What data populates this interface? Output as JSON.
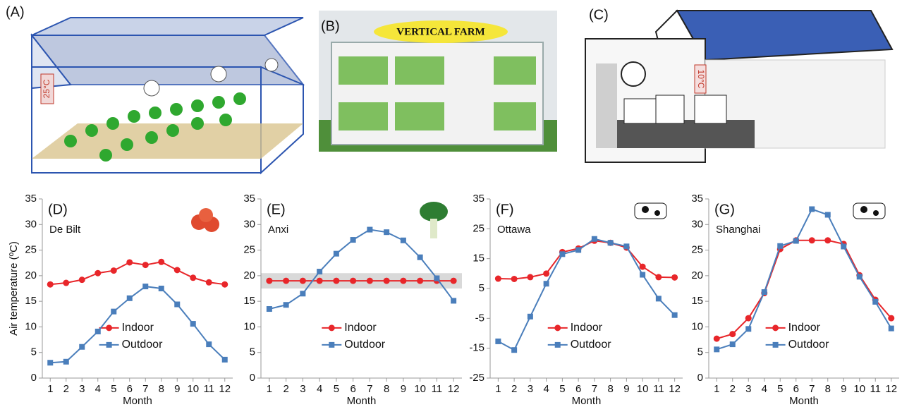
{
  "illustrations": [
    {
      "label": "(A)",
      "text": "25°C"
    },
    {
      "label": "(B)",
      "text": "VERTICAL FARM"
    },
    {
      "label": "(C)",
      "text": "10°C"
    }
  ],
  "chart_data": [
    {
      "type": "line",
      "title": "(D)",
      "subtitle": "De Bilt",
      "ylabel": "Air temperature (ºC)",
      "xlabel": "Month",
      "x": [
        1,
        2,
        3,
        4,
        5,
        6,
        7,
        8,
        9,
        10,
        11,
        12
      ],
      "xlim": [
        0.5,
        12.5
      ],
      "xticks": [
        1,
        2,
        3,
        4,
        5,
        6,
        7,
        8,
        9,
        10,
        11,
        12
      ],
      "ylim": [
        0,
        35
      ],
      "yticks": [
        0,
        5,
        10,
        15,
        20,
        25,
        30,
        35
      ],
      "legend": "lower center",
      "series": [
        {
          "name": "Indoor",
          "color": "#e8262a",
          "marker": "circle",
          "values": [
            18.3,
            18.6,
            19.2,
            20.5,
            21.0,
            22.6,
            22.1,
            22.7,
            21.1,
            19.6,
            18.7,
            18.3
          ]
        },
        {
          "name": "Outdoor",
          "color": "#4a7ebb",
          "marker": "square",
          "values": [
            3.0,
            3.2,
            6.1,
            9.1,
            13.0,
            15.6,
            17.9,
            17.5,
            14.4,
            10.6,
            6.6,
            3.6
          ]
        }
      ]
    },
    {
      "type": "line",
      "title": "(E)",
      "subtitle": "Anxi",
      "xlabel": "Month",
      "x": [
        1,
        2,
        3,
        4,
        5,
        6,
        7,
        8,
        9,
        10,
        11,
        12
      ],
      "xlim": [
        0.5,
        12.5
      ],
      "xticks": [
        1,
        2,
        3,
        4,
        5,
        6,
        7,
        8,
        9,
        10,
        11,
        12
      ],
      "ylim": [
        0,
        35
      ],
      "yticks": [
        0,
        5,
        10,
        15,
        20,
        25,
        30,
        35
      ],
      "legend": "lower center",
      "band": [
        17.5,
        20.5
      ],
      "band_color": "#d9d9d9",
      "series": [
        {
          "name": "Indoor",
          "color": "#e8262a",
          "marker": "circle",
          "values": [
            19,
            19,
            19,
            19,
            19,
            19,
            19,
            19,
            19,
            19,
            19,
            19
          ]
        },
        {
          "name": "Outdoor",
          "color": "#4a7ebb",
          "marker": "square",
          "values": [
            13.5,
            14.3,
            16.5,
            20.8,
            24.3,
            27.0,
            29.0,
            28.5,
            26.9,
            23.6,
            19.5,
            15.1
          ]
        }
      ]
    },
    {
      "type": "line",
      "title": "(F)",
      "subtitle": "Ottawa",
      "xlabel": "Month",
      "x": [
        1,
        2,
        3,
        4,
        5,
        6,
        7,
        8,
        9,
        10,
        11,
        12
      ],
      "xlim": [
        0.5,
        12.5
      ],
      "xticks": [
        1,
        2,
        3,
        4,
        5,
        6,
        7,
        8,
        9,
        10,
        11,
        12
      ],
      "ylim": [
        -25,
        35
      ],
      "yticks": [
        -25,
        -15,
        -5,
        5,
        15,
        25,
        35
      ],
      "legend": "lower center",
      "series": [
        {
          "name": "Indoor",
          "color": "#e8262a",
          "marker": "circle",
          "values": [
            8.3,
            8.2,
            8.8,
            10.0,
            17.2,
            18.4,
            21.0,
            20.3,
            18.7,
            12.3,
            8.8,
            8.7
          ]
        },
        {
          "name": "Outdoor",
          "color": "#4a7ebb",
          "marker": "square",
          "values": [
            -12.7,
            -15.6,
            -4.4,
            6.6,
            16.5,
            17.9,
            21.6,
            20.3,
            19.1,
            9.6,
            1.6,
            -3.9
          ]
        }
      ]
    },
    {
      "type": "line",
      "title": "(G)",
      "subtitle": "Shanghai",
      "xlabel": "Month",
      "x": [
        1,
        2,
        3,
        4,
        5,
        6,
        7,
        8,
        9,
        10,
        11,
        12
      ],
      "xlim": [
        0.5,
        12.5
      ],
      "xticks": [
        1,
        2,
        3,
        4,
        5,
        6,
        7,
        8,
        9,
        10,
        11,
        12
      ],
      "ylim": [
        0,
        35
      ],
      "yticks": [
        0,
        5,
        10,
        15,
        20,
        25,
        30,
        35
      ],
      "legend": "lower center",
      "series": [
        {
          "name": "Indoor",
          "color": "#e8262a",
          "marker": "circle",
          "values": [
            7.7,
            8.6,
            11.7,
            16.6,
            25.2,
            26.9,
            26.9,
            26.9,
            26.2,
            20.1,
            15.3,
            11.7
          ]
        },
        {
          "name": "Outdoor",
          "color": "#4a7ebb",
          "marker": "square",
          "values": [
            5.6,
            6.6,
            9.6,
            16.8,
            25.8,
            26.8,
            33.0,
            31.9,
            25.7,
            19.8,
            14.9,
            9.7
          ]
        }
      ]
    }
  ]
}
